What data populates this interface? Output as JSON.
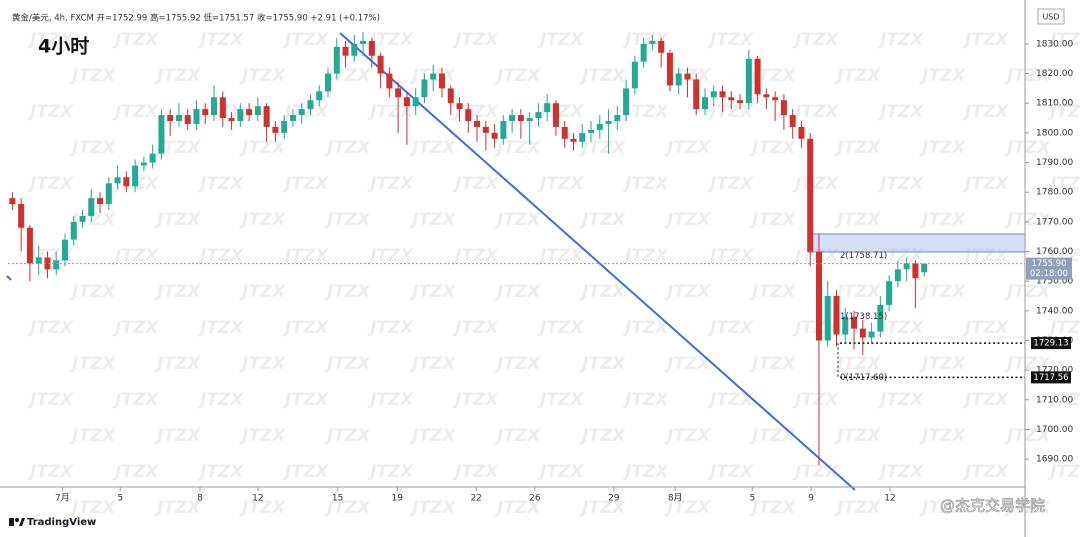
{
  "chart_data": {
    "type": "candlestick",
    "title": "4小时",
    "header": "黄金/美元, 4h, FXCM  开=1752.99  高=1755.92  低=1751.57  收=1755.90  +2.91 (+0.17%)",
    "currency": "USD",
    "watermark": "JTZX",
    "brand": "TradingView",
    "signature": "@杰克交易学院",
    "up_color": "#22ab94",
    "down_color": "#d32f2f",
    "x": [
      0,
      1,
      2,
      3,
      4,
      5,
      6,
      7,
      8,
      9,
      10,
      11,
      12,
      13,
      14,
      15,
      16,
      17,
      18,
      19,
      20,
      21,
      22,
      23,
      24,
      25,
      26,
      27,
      28,
      29,
      30,
      31,
      32,
      33,
      34,
      35,
      36,
      37,
      38,
      39,
      40,
      41,
      42,
      43,
      44,
      45,
      46,
      47,
      48,
      49,
      50,
      51,
      52,
      53,
      54,
      55,
      56,
      57,
      58,
      59,
      60,
      61,
      62,
      63,
      64,
      65,
      66,
      67,
      68,
      69,
      70,
      71,
      72,
      73,
      74,
      75,
      76,
      77,
      78,
      79,
      80,
      81,
      82,
      83,
      84,
      85,
      86,
      87,
      88,
      89,
      90,
      91,
      92,
      93,
      94,
      95,
      96,
      97,
      98,
      99,
      100,
      101,
      102,
      103,
      104
    ],
    "open": [
      1778,
      1776,
      1768,
      1756,
      1758,
      1754,
      1757,
      1764,
      1770,
      1772,
      1778,
      1776,
      1783,
      1785,
      1782,
      1789,
      1790,
      1793,
      1806,
      1804,
      1806,
      1803,
      1808,
      1806,
      1812,
      1805,
      1804,
      1808,
      1806,
      1809,
      1802,
      1800,
      1804,
      1806,
      1808,
      1811,
      1814,
      1820,
      1829,
      1826,
      1830,
      1831,
      1826,
      1820,
      1815,
      1812,
      1809,
      1812,
      1818,
      1820,
      1815,
      1810,
      1808,
      1804,
      1802,
      1800,
      1798,
      1804,
      1806,
      1804,
      1805,
      1807,
      1810,
      1802,
      1798,
      1797,
      1800,
      1801,
      1803,
      1804,
      1806,
      1815,
      1824,
      1830,
      1831,
      1827,
      1816,
      1820,
      1818,
      1808,
      1812,
      1814,
      1812,
      1811,
      1810,
      1825,
      1813,
      1812,
      1811,
      1806,
      1802,
      1798,
      1760,
      1730,
      1745,
      1732,
      1738,
      1734,
      1731,
      1733,
      1742,
      1750,
      1754,
      1756,
      1752.99
    ],
    "high": [
      1780,
      1778,
      1769,
      1762,
      1760,
      1760,
      1766,
      1772,
      1774,
      1781,
      1780,
      1785,
      1789,
      1787,
      1791,
      1792,
      1796,
      1808,
      1808,
      1810,
      1808,
      1811,
      1810,
      1816,
      1814,
      1807,
      1810,
      1810,
      1812,
      1810,
      1804,
      1806,
      1808,
      1810,
      1813,
      1816,
      1822,
      1832,
      1831,
      1833,
      1834,
      1832,
      1827,
      1822,
      1817,
      1814,
      1815,
      1820,
      1823,
      1822,
      1816,
      1812,
      1810,
      1806,
      1804,
      1803,
      1806,
      1808,
      1808,
      1807,
      1810,
      1813,
      1811,
      1804,
      1800,
      1803,
      1804,
      1806,
      1808,
      1809,
      1818,
      1826,
      1832,
      1833,
      1832,
      1828,
      1822,
      1822,
      1820,
      1815,
      1816,
      1816,
      1814,
      1813,
      1828,
      1826,
      1815,
      1814,
      1813,
      1808,
      1804,
      1800,
      1766,
      1750,
      1747,
      1741,
      1740,
      1737,
      1736,
      1745,
      1752,
      1757,
      1758,
      1757,
      1755.92
    ],
    "low": [
      1774,
      1760,
      1750,
      1752,
      1751,
      1752,
      1755,
      1762,
      1768,
      1770,
      1773,
      1774,
      1781,
      1780,
      1780,
      1787,
      1788,
      1791,
      1799,
      1802,
      1801,
      1801,
      1803,
      1804,
      1802,
      1801,
      1802,
      1804,
      1804,
      1797,
      1797,
      1798,
      1802,
      1803,
      1806,
      1809,
      1812,
      1818,
      1822,
      1824,
      1826,
      1822,
      1815,
      1812,
      1800,
      1796,
      1806,
      1810,
      1814,
      1812,
      1806,
      1804,
      1800,
      1797,
      1794,
      1795,
      1796,
      1800,
      1798,
      1796,
      1802,
      1804,
      1799,
      1795,
      1794,
      1795,
      1797,
      1798,
      1793,
      1801,
      1804,
      1813,
      1822,
      1828,
      1822,
      1814,
      1813,
      1812,
      1806,
      1806,
      1809,
      1807,
      1808,
      1808,
      1808,
      1810,
      1808,
      1804,
      1801,
      1798,
      1795,
      1755,
      1688,
      1728,
      1728,
      1729,
      1727,
      1725,
      1729,
      1731,
      1740,
      1748,
      1750,
      1741,
      1751.57
    ],
    "close": [
      1776,
      1768,
      1756,
      1758,
      1754,
      1757,
      1764,
      1770,
      1772,
      1778,
      1776,
      1783,
      1785,
      1782,
      1789,
      1790,
      1793,
      1806,
      1804,
      1806,
      1803,
      1808,
      1806,
      1812,
      1805,
      1804,
      1808,
      1806,
      1809,
      1802,
      1800,
      1804,
      1806,
      1808,
      1811,
      1814,
      1820,
      1829,
      1826,
      1830,
      1831,
      1826,
      1820,
      1815,
      1812,
      1809,
      1812,
      1818,
      1820,
      1815,
      1810,
      1808,
      1804,
      1802,
      1800,
      1798,
      1804,
      1806,
      1804,
      1805,
      1807,
      1810,
      1802,
      1798,
      1797,
      1800,
      1801,
      1803,
      1804,
      1806,
      1815,
      1824,
      1830,
      1831,
      1827,
      1816,
      1820,
      1818,
      1808,
      1812,
      1814,
      1812,
      1811,
      1810,
      1825,
      1813,
      1812,
      1811,
      1806,
      1802,
      1798,
      1760,
      1730,
      1745,
      1732,
      1738,
      1734,
      1731,
      1733,
      1742,
      1750,
      1754,
      1756,
      1751,
      1755.9
    ],
    "xlim": [
      -0.5,
      115.5
    ],
    "xticks": [
      {
        "value": 5.7,
        "label": "7月"
      },
      {
        "value": 12.3,
        "label": "5"
      },
      {
        "value": 21.4,
        "label": "8"
      },
      {
        "value": 28.0,
        "label": "12"
      },
      {
        "value": 37.1,
        "label": "15"
      },
      {
        "value": 43.9,
        "label": "19"
      },
      {
        "value": 52.9,
        "label": "22"
      },
      {
        "value": 59.6,
        "label": "26"
      },
      {
        "value": 68.6,
        "label": "29"
      },
      {
        "value": 75.6,
        "label": "8月"
      },
      {
        "value": 84.4,
        "label": "5"
      },
      {
        "value": 91.1,
        "label": "9"
      },
      {
        "value": 100.1,
        "label": "12"
      }
    ],
    "ylim": [
      1680.6,
      1842.1
    ],
    "yticks": [
      {
        "value": 1690,
        "label": "1690.00"
      },
      {
        "value": 1700,
        "label": "1700.00"
      },
      {
        "value": 1710,
        "label": "1710.00"
      },
      {
        "value": 1720,
        "label": "1720.00"
      },
      {
        "value": 1730,
        "label": "1730.00"
      },
      {
        "value": 1740,
        "label": "1740.00"
      },
      {
        "value": 1750,
        "label": "1750.00"
      },
      {
        "value": 1760,
        "label": "1760.00"
      },
      {
        "value": 1770,
        "label": "1770.00"
      },
      {
        "value": 1780,
        "label": "1780.00"
      },
      {
        "value": 1790,
        "label": "1790.00"
      },
      {
        "value": 1800,
        "label": "1800.00"
      },
      {
        "value": 1810,
        "label": "1810.00"
      },
      {
        "value": 1820,
        "label": "1820.00"
      },
      {
        "value": 1830,
        "label": "1830.00"
      }
    ],
    "fib_levels": [
      {
        "value": 1758.71,
        "label": "2(1758.71)"
      },
      {
        "value": 1738.15,
        "label": "1(1738.15)"
      },
      {
        "value": 1717.6,
        "label": "0(1717.60)"
      }
    ],
    "price_badges": [
      {
        "value": 1755.9,
        "label": "1755.90",
        "countdown": "02:18:00",
        "style": "current"
      },
      {
        "value": 1729.13,
        "label": "1729.13",
        "style": "level"
      },
      {
        "value": 1717.56,
        "label": "1717.56",
        "style": "level"
      }
    ]
  }
}
